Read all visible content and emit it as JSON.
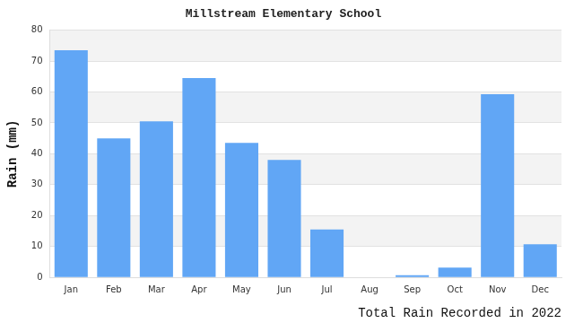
{
  "chart_data": {
    "type": "bar",
    "title": "Millstream Elementary School",
    "x_label": "Total Rain Recorded in 2022",
    "y_label": "Rain (mm)",
    "categories": [
      "Jan",
      "Feb",
      "Mar",
      "Apr",
      "May",
      "Jun",
      "Jul",
      "Aug",
      "Sep",
      "Oct",
      "Nov",
      "Dec"
    ],
    "values": [
      73.5,
      45,
      50.5,
      64.5,
      43.5,
      38,
      15.5,
      0,
      0.7,
      3.2,
      59.3,
      10.7
    ],
    "color": "#61a6f5",
    "ylim": [
      0,
      80
    ],
    "yticks": [
      0,
      10,
      20,
      30,
      40,
      50,
      60,
      70,
      80
    ],
    "grid": true
  }
}
